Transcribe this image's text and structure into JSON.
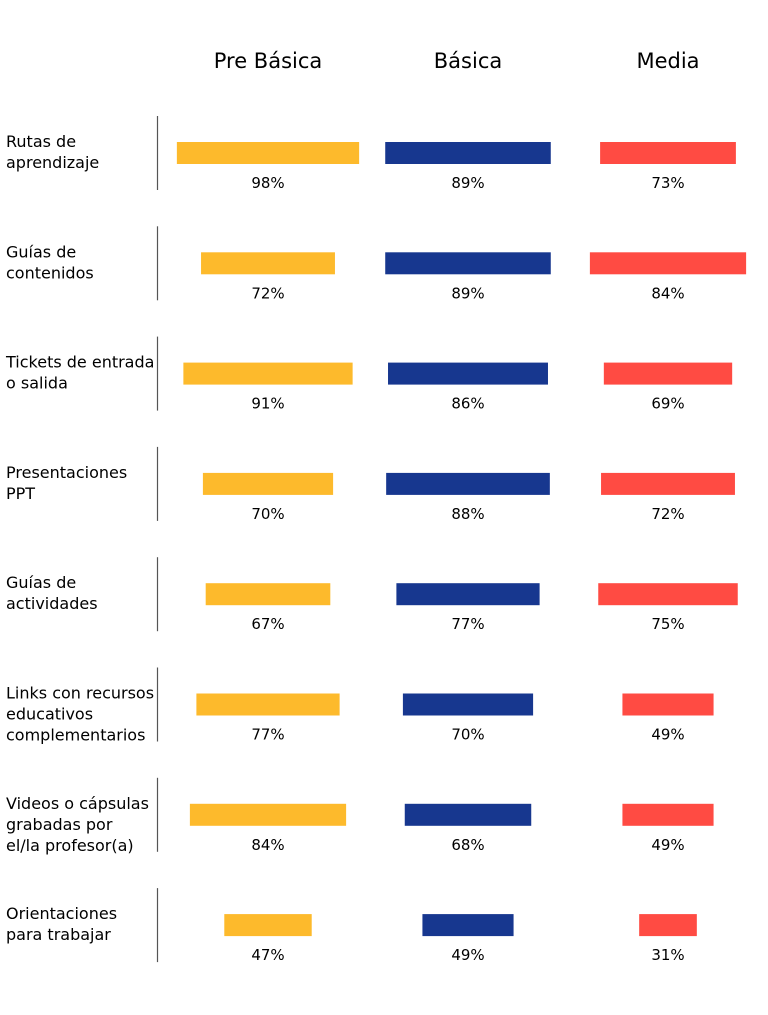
{
  "chart_data": {
    "type": "bar",
    "orientation": "horizontal",
    "layout": "small-multiples-centered",
    "columns": [
      "Pre Básica",
      "Básica",
      "Media"
    ],
    "categories": [
      "Rutas de aprendizaje",
      "Guías de contenidos",
      "Tickets de entrada o salida",
      "Presentaciones PPT",
      "Guías de actividades",
      "Links con recursos educativos complementarios",
      "Videos o cápsulas grabadas por el/la profesor(a)",
      "Orientaciones para trabajar"
    ],
    "category_lines": [
      [
        "Rutas de",
        "aprendizaje"
      ],
      [
        "Guías de",
        "contenidos"
      ],
      [
        "Tickets de entrada",
        "o salida"
      ],
      [
        "Presentaciones",
        "PPT"
      ],
      [
        "Guías de",
        "actividades"
      ],
      [
        "Links con recursos",
        "educativos",
        "complementarios"
      ],
      [
        "Videos o cápsulas",
        "grabadas por",
        "el/la profesor(a)"
      ],
      [
        "Orientaciones",
        "para trabajar"
      ]
    ],
    "series": [
      {
        "name": "Pre Básica",
        "values": [
          98,
          72,
          91,
          70,
          67,
          77,
          84,
          47
        ],
        "color": "#FDBA2C"
      },
      {
        "name": "Básica",
        "values": [
          89,
          89,
          86,
          88,
          77,
          70,
          68,
          49
        ],
        "color": "#17378F"
      },
      {
        "name": "Media",
        "values": [
          73,
          84,
          69,
          72,
          75,
          49,
          49,
          31
        ],
        "color": "#FF4B43"
      }
    ],
    "value_suffix": "%",
    "xlim": [
      0,
      100
    ],
    "grid": false,
    "legend": "none"
  }
}
